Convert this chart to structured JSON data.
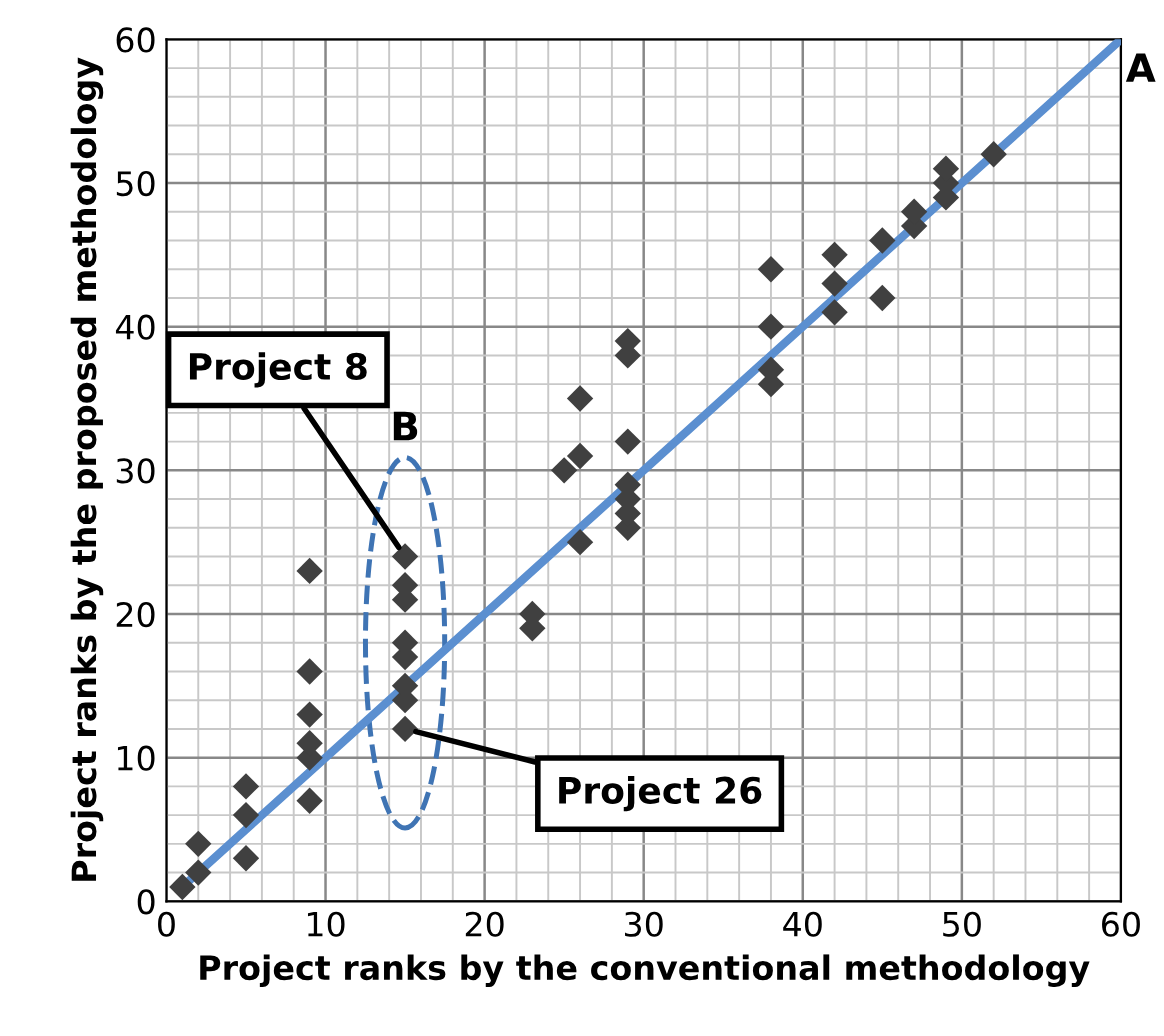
{
  "chart_data": {
    "type": "scatter",
    "xlabel": "Project ranks by the conventional methodology",
    "ylabel": "Project ranks by the proposed methodology",
    "xlim": [
      0,
      60
    ],
    "ylim": [
      0,
      60
    ],
    "xticks": [
      0,
      10,
      20,
      30,
      40,
      50,
      60
    ],
    "yticks": [
      0,
      10,
      20,
      30,
      40,
      50,
      60
    ],
    "grid": true,
    "series": [
      {
        "marker": "diamond",
        "color": "#404040",
        "x": [
          1,
          2,
          2,
          5,
          5,
          5,
          9,
          9,
          9,
          9,
          9,
          9,
          15,
          15,
          15,
          15,
          15,
          15,
          15,
          15,
          23,
          23,
          25,
          26,
          26,
          26,
          29,
          29,
          29,
          29,
          29,
          29,
          29,
          38,
          38,
          38,
          38,
          42,
          42,
          42,
          45,
          45,
          47,
          47,
          49,
          49,
          49,
          52
        ],
        "values": [
          1,
          2,
          4,
          3,
          6,
          8,
          7,
          10,
          11,
          13,
          16,
          23,
          12,
          14,
          15,
          17,
          18,
          21,
          22,
          24,
          19,
          20,
          30,
          25,
          31,
          35,
          26,
          27,
          28,
          29,
          32,
          38,
          39,
          36,
          37,
          40,
          44,
          41,
          43,
          45,
          42,
          46,
          47,
          48,
          49,
          50,
          51,
          52
        ]
      },
      {
        "type": "line",
        "color": "#5b8fd0",
        "x": [
          1,
          60
        ],
        "values": [
          1,
          60
        ]
      }
    ],
    "annotations": [
      "A",
      "B",
      {
        "text": "Project 8",
        "x": 15,
        "y": 24
      },
      {
        "text": "Project 26",
        "x": 15,
        "y": 12
      }
    ]
  }
}
